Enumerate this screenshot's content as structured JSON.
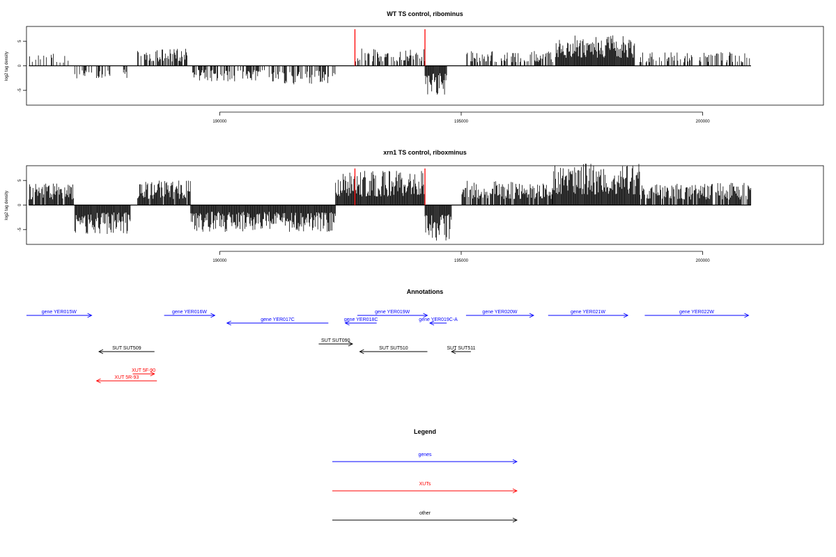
{
  "colors": {
    "genes": "#0000ff",
    "xuts": "#ff0000",
    "other": "#000000",
    "marker": "#ff0000"
  },
  "chart_data": [
    {
      "type": "bar",
      "title": "WT TS control, ribominus",
      "ylabel": "log2 tag density",
      "xlim": [
        186000,
        202500
      ],
      "ylim": [
        -8,
        8
      ],
      "xticks": [
        190000,
        195000,
        200000
      ],
      "yticks": [
        -5,
        0,
        5
      ],
      "markers_x": [
        192800,
        194250
      ],
      "profile": [
        {
          "x0": 186050,
          "x1": 186900,
          "density": 0.25,
          "sign": 1,
          "max": 2.5
        },
        {
          "x0": 187000,
          "x1": 188100,
          "density": 0.35,
          "sign": -1,
          "max": 2.6
        },
        {
          "x0": 188300,
          "x1": 189350,
          "density": 0.7,
          "sign": 1,
          "max": 3.5
        },
        {
          "x0": 189400,
          "x1": 191200,
          "density": 0.55,
          "sign": -1,
          "max": 3.2
        },
        {
          "x0": 191200,
          "x1": 192400,
          "density": 0.55,
          "sign": -1,
          "max": 3.8
        },
        {
          "x0": 192800,
          "x1": 194250,
          "density": 0.6,
          "sign": 1,
          "max": 3.5
        },
        {
          "x0": 194250,
          "x1": 194700,
          "density": 1.0,
          "sign": -1,
          "max": 6.0
        },
        {
          "x0": 195100,
          "x1": 196900,
          "density": 0.45,
          "sign": 1,
          "max": 3.0
        },
        {
          "x0": 196950,
          "x1": 198600,
          "density": 1.0,
          "sign": 1,
          "max": 6.5
        },
        {
          "x0": 198700,
          "x1": 201000,
          "density": 0.4,
          "sign": 1,
          "max": 2.8
        }
      ]
    },
    {
      "type": "bar",
      "title": "xrn1 TS control, riboxminus",
      "ylabel": "log2 tag density",
      "xlim": [
        186000,
        202500
      ],
      "ylim": [
        -8,
        8
      ],
      "xticks": [
        190000,
        195000,
        200000
      ],
      "yticks": [
        -5,
        0,
        5
      ],
      "markers_x": [
        192800,
        194250
      ],
      "profile": [
        {
          "x0": 186050,
          "x1": 187000,
          "density": 0.85,
          "sign": 1,
          "max": 4.5
        },
        {
          "x0": 187000,
          "x1": 188150,
          "density": 1.0,
          "sign": -1,
          "max": 6.0
        },
        {
          "x0": 188300,
          "x1": 189400,
          "density": 0.9,
          "sign": 1,
          "max": 5.0
        },
        {
          "x0": 189400,
          "x1": 192400,
          "density": 1.0,
          "sign": -1,
          "max": 5.5
        },
        {
          "x0": 192400,
          "x1": 194250,
          "density": 1.0,
          "sign": 1,
          "max": 7.0
        },
        {
          "x0": 194250,
          "x1": 194800,
          "density": 1.0,
          "sign": -1,
          "max": 7.5
        },
        {
          "x0": 195000,
          "x1": 196900,
          "density": 0.9,
          "sign": 1,
          "max": 5.0
        },
        {
          "x0": 196900,
          "x1": 198700,
          "density": 1.0,
          "sign": 1,
          "max": 8.5
        },
        {
          "x0": 198700,
          "x1": 201000,
          "density": 0.85,
          "sign": 1,
          "max": 4.5
        }
      ]
    }
  ],
  "annotations": {
    "title": "Annotations",
    "features": [
      {
        "label": "gene YER015W",
        "kind": "gene",
        "start": 186000,
        "end": 187350,
        "row": 0,
        "strand": "+"
      },
      {
        "label": "gene YER016W",
        "kind": "gene",
        "start": 188850,
        "end": 189900,
        "row": 0,
        "strand": "+"
      },
      {
        "label": "gene YER017C",
        "kind": "gene",
        "start": 190150,
        "end": 192250,
        "row": 1,
        "strand": "-"
      },
      {
        "label": "gene YER018C",
        "kind": "gene",
        "start": 192600,
        "end": 193250,
        "row": 1,
        "strand": "-"
      },
      {
        "label": "gene YER019W",
        "kind": "gene",
        "start": 192850,
        "end": 194300,
        "row": 0,
        "strand": "+"
      },
      {
        "label": "gene YER019C-A",
        "kind": "gene",
        "start": 194350,
        "end": 194700,
        "row": 1,
        "strand": "-"
      },
      {
        "label": "gene YER020W",
        "kind": "gene",
        "start": 195100,
        "end": 196500,
        "row": 0,
        "strand": "+"
      },
      {
        "label": "gene YER021W",
        "kind": "gene",
        "start": 196800,
        "end": 198450,
        "row": 0,
        "strand": "+"
      },
      {
        "label": "gene YER022W",
        "kind": "gene",
        "start": 198800,
        "end": 200950,
        "row": 0,
        "strand": "+"
      },
      {
        "label": "SUT SUT509",
        "kind": "other",
        "start": 187500,
        "end": 188650,
        "row": 2,
        "strand": "-"
      },
      {
        "label": "SUT SUT090",
        "kind": "other",
        "start": 192050,
        "end": 192750,
        "row": 3,
        "strand": "+"
      },
      {
        "label": "SUT SUT510",
        "kind": "other",
        "start": 192900,
        "end": 194300,
        "row": 2,
        "strand": "-"
      },
      {
        "label": "SUT SUT511",
        "kind": "other",
        "start": 194800,
        "end": 195200,
        "row": 2,
        "strand": "-"
      },
      {
        "label": "XUT 5F-90",
        "kind": "xut",
        "start": 188200,
        "end": 188650,
        "row": 4,
        "strand": "+"
      },
      {
        "label": "XUT 5R-93",
        "kind": "xut",
        "start": 187450,
        "end": 188700,
        "row": 5,
        "strand": "-"
      }
    ]
  },
  "legend": {
    "title": "Legend",
    "items": [
      {
        "label": "genes",
        "kind": "gene"
      },
      {
        "label": "XUTs",
        "kind": "xut"
      },
      {
        "label": "other",
        "kind": "other"
      }
    ]
  }
}
